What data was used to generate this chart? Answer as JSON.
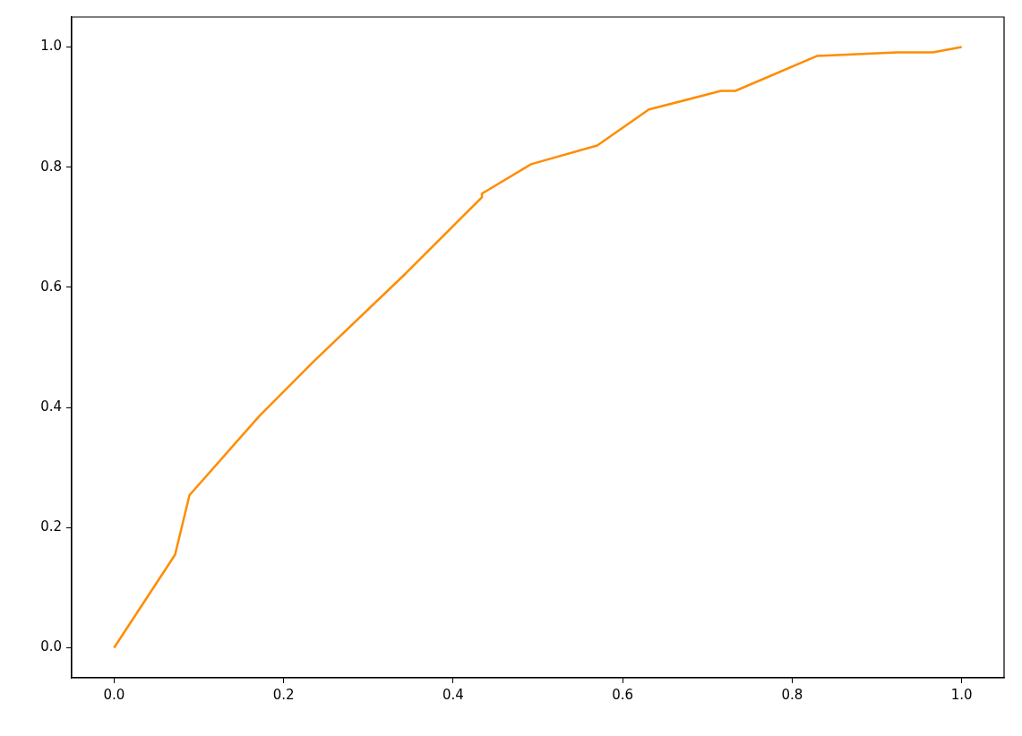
{
  "chart_data": {
    "type": "line",
    "x": [
      0,
      0.072,
      0.089,
      0.171,
      0.173,
      0.235,
      0.344,
      0.434,
      0.434,
      0.492,
      0.57,
      0.631,
      0.716,
      0.733,
      0.829,
      0.924,
      0.966,
      1
    ],
    "series": [
      {
        "color": "#ff8c00",
        "values": [
          0,
          0.155,
          0.254,
          0.385,
          0.388,
          0.476,
          0.623,
          0.75,
          0.756,
          0.805,
          0.836,
          0.896,
          0.927,
          0.927,
          0.985,
          0.991,
          0.991,
          1
        ]
      }
    ],
    "xlim": [
      -0.05,
      1.05
    ],
    "ylim": [
      -0.05,
      1.05
    ],
    "xticks": [
      {
        "value": 0,
        "label": "0.0"
      },
      {
        "value": 0.2,
        "label": "0.2"
      },
      {
        "value": 0.4,
        "label": "0.4"
      },
      {
        "value": 0.6,
        "label": "0.6"
      },
      {
        "value": 0.8,
        "label": "0.8"
      },
      {
        "value": 1,
        "label": "1.0"
      }
    ],
    "yticks": [
      {
        "value": 0,
        "label": "0.0"
      },
      {
        "value": 0.2,
        "label": "0.2"
      },
      {
        "value": 0.4,
        "label": "0.4"
      },
      {
        "value": 0.6,
        "label": "0.6"
      },
      {
        "value": 0.8,
        "label": "0.8"
      },
      {
        "value": 1,
        "label": "1.0"
      }
    ],
    "grid": false,
    "legend": false,
    "marker": "none",
    "line_style": "solid"
  }
}
